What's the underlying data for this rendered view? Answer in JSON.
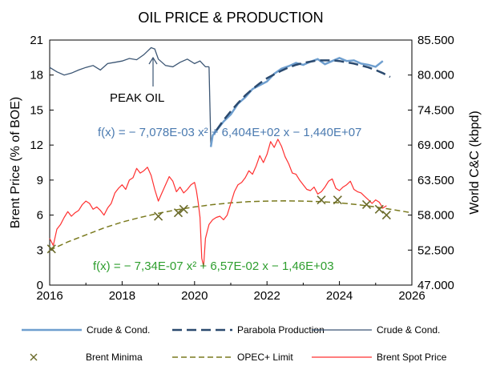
{
  "chart_data": {
    "type": "line",
    "title": "OIL PRICE & PRODUCTION",
    "ylabel_left": "Brent Price  (% of BOE)",
    "ylabel_right": "World C&C (kbpd)",
    "xlim": [
      2016,
      2026
    ],
    "ylim_left": [
      0,
      21
    ],
    "ylim_right": [
      47000,
      85500
    ],
    "x_ticks": [
      "2016",
      "2018",
      "2020",
      "2022",
      "2024",
      "2026"
    ],
    "y_ticks_left": [
      "0",
      "3",
      "6",
      "9",
      "12",
      "15",
      "18",
      "21"
    ],
    "y_ticks_right": [
      "47.000",
      "52.500",
      "58.000",
      "63.500",
      "69.000",
      "74.500",
      "80.000",
      "85.500"
    ],
    "grid": false,
    "legend_position": "bottom",
    "annotations": {
      "peak_oil": "PEAK OIL",
      "fit_production": "f(x) = − 7,078E-03 x² + 6,404E+02 x − 1,440E+07",
      "fit_opec": "f(x) = − 7,34E-07 x² + 6,57E-02 x − 1,46E+03"
    },
    "legend": [
      "Crude & Cond.",
      "Parabola Production",
      "Crude & Cond.",
      "Brent Minima",
      "OPEC+ Limit",
      "Brent Spot Price"
    ],
    "colors": {
      "crude_light": "#6f9fcf",
      "parabola": "#2b4a6f",
      "crude_dark": "#3b5573",
      "brent_minima": "#6b6b2a",
      "opec_limit": "#7a7a1e",
      "brent_spot": "#ff3030",
      "fit_production_text": "#4a7ab0",
      "fit_opec_text": "#2e9e2e"
    },
    "series": {
      "crude_dark": {
        "name": "Crude & Cond.",
        "axis": "right",
        "x": [
          2016.0,
          2016.2,
          2016.4,
          2016.6,
          2016.8,
          2017.0,
          2017.2,
          2017.4,
          2017.6,
          2017.8,
          2018.0,
          2018.2,
          2018.4,
          2018.6,
          2018.8,
          2018.9,
          2019.0,
          2019.2,
          2019.4,
          2019.6,
          2019.8,
          2020.0,
          2020.15,
          2020.3,
          2020.4
        ],
        "y": [
          81200,
          80500,
          80000,
          80300,
          80800,
          81200,
          81500,
          80800,
          81800,
          82000,
          82200,
          82600,
          82400,
          83200,
          84300,
          84100,
          82500,
          81500,
          81300,
          82000,
          82500,
          81800,
          82200,
          81300,
          81300
        ]
      },
      "crude_light": {
        "name": "Crude & Cond.",
        "axis": "right",
        "x": [
          2020.45,
          2020.5,
          2020.65,
          2020.8,
          2021.0,
          2021.2,
          2021.4,
          2021.6,
          2021.8,
          2022.0,
          2022.2,
          2022.4,
          2022.6,
          2022.8,
          2023.0,
          2023.2,
          2023.4,
          2023.6,
          2023.8,
          2024.0,
          2024.2,
          2024.4,
          2024.6,
          2024.8,
          2025.0,
          2025.2
        ],
        "y": [
          68700,
          70500,
          71600,
          72700,
          73800,
          75500,
          76500,
          77800,
          78400,
          79000,
          80200,
          81000,
          81400,
          81900,
          81600,
          82100,
          82500,
          81700,
          82200,
          82700,
          82200,
          82300,
          81800,
          81600,
          81300,
          82200
        ]
      },
      "parabola_production": {
        "name": "Parabola Production",
        "axis": "right",
        "x": [
          2020.6,
          2020.8,
          2021.0,
          2021.2,
          2021.4,
          2021.6,
          2021.8,
          2022.0,
          2022.2,
          2022.4,
          2022.6,
          2022.8,
          2023.0,
          2023.2,
          2023.4,
          2023.6,
          2023.8,
          2024.0,
          2024.2,
          2024.4,
          2024.6,
          2024.8,
          2025.0,
          2025.2,
          2025.4
        ],
        "y": [
          71300,
          72900,
          74300,
          75600,
          76800,
          77800,
          78700,
          79500,
          80100,
          80700,
          81200,
          81600,
          81900,
          82100,
          82300,
          82300,
          82300,
          82200,
          82000,
          81800,
          81500,
          81200,
          80800,
          80300,
          79700
        ]
      },
      "opec_limit": {
        "name": "OPEC+ Limit",
        "axis": "left",
        "x": [
          2016.0,
          2016.5,
          2017.0,
          2017.5,
          2018.0,
          2018.5,
          2019.0,
          2019.5,
          2020.0,
          2020.5,
          2021.0,
          2021.5,
          2022.0,
          2022.5,
          2023.0,
          2023.5,
          2024.0,
          2024.5,
          2025.0,
          2025.5,
          2026.0
        ],
        "y": [
          3.0,
          3.7,
          4.3,
          4.9,
          5.4,
          5.8,
          6.15,
          6.45,
          6.7,
          6.9,
          7.05,
          7.15,
          7.2,
          7.22,
          7.2,
          7.15,
          7.05,
          6.9,
          6.7,
          6.45,
          6.2
        ]
      },
      "brent_minima": {
        "name": "Brent Minima",
        "axis": "left",
        "x": [
          2016.05,
          2019.0,
          2019.55,
          2019.7,
          2023.5,
          2023.95,
          2024.75,
          2025.1,
          2025.3
        ],
        "y": [
          3.1,
          5.9,
          6.2,
          6.5,
          7.3,
          7.3,
          6.9,
          6.5,
          6.0
        ]
      },
      "brent_spot": {
        "name": "Brent Spot Price",
        "axis": "left",
        "x": [
          2016.0,
          2016.1,
          2016.2,
          2016.3,
          2016.4,
          2016.5,
          2016.6,
          2016.7,
          2016.8,
          2016.9,
          2017.0,
          2017.1,
          2017.2,
          2017.3,
          2017.4,
          2017.5,
          2017.6,
          2017.7,
          2017.8,
          2017.9,
          2018.0,
          2018.1,
          2018.2,
          2018.3,
          2018.4,
          2018.5,
          2018.6,
          2018.7,
          2018.8,
          2018.9,
          2019.0,
          2019.1,
          2019.2,
          2019.3,
          2019.4,
          2019.5,
          2019.6,
          2019.7,
          2019.8,
          2019.9,
          2020.0,
          2020.05,
          2020.1,
          2020.15,
          2020.2,
          2020.25,
          2020.3,
          2020.35,
          2020.4,
          2020.5,
          2020.6,
          2020.7,
          2020.8,
          2020.9,
          2021.0,
          2021.1,
          2021.2,
          2021.3,
          2021.4,
          2021.5,
          2021.6,
          2021.7,
          2021.8,
          2021.9,
          2022.0,
          2022.1,
          2022.2,
          2022.3,
          2022.4,
          2022.5,
          2022.6,
          2022.7,
          2022.8,
          2022.9,
          2023.0,
          2023.1,
          2023.2,
          2023.3,
          2023.4,
          2023.5,
          2023.6,
          2023.7,
          2023.8,
          2023.9,
          2024.0,
          2024.1,
          2024.2,
          2024.3,
          2024.4,
          2024.5,
          2024.6,
          2024.7,
          2024.8,
          2024.9,
          2025.0,
          2025.1,
          2025.2,
          2025.3
        ],
        "y": [
          4.0,
          3.4,
          4.8,
          5.2,
          5.8,
          6.3,
          5.9,
          6.2,
          6.4,
          6.9,
          7.2,
          7.0,
          6.5,
          6.7,
          6.4,
          6.0,
          6.6,
          7.0,
          7.9,
          8.3,
          8.6,
          8.2,
          9.0,
          9.2,
          10.0,
          9.6,
          9.8,
          10.1,
          9.4,
          8.2,
          7.2,
          7.9,
          8.6,
          9.3,
          8.9,
          8.0,
          8.4,
          7.9,
          8.2,
          8.6,
          8.8,
          8.1,
          7.1,
          5.8,
          2.3,
          1.6,
          4.0,
          4.6,
          5.2,
          5.6,
          5.8,
          5.9,
          5.6,
          6.0,
          7.0,
          8.0,
          8.6,
          8.8,
          9.2,
          9.8,
          9.5,
          10.2,
          11.1,
          10.5,
          11.2,
          12.3,
          11.8,
          12.5,
          11.9,
          11.0,
          10.4,
          9.6,
          9.5,
          9.0,
          8.6,
          8.2,
          8.1,
          8.4,
          7.8,
          8.0,
          8.4,
          8.9,
          9.1,
          8.3,
          8.1,
          8.4,
          8.6,
          8.9,
          8.2,
          8.0,
          7.9,
          7.6,
          7.3,
          7.0,
          7.3,
          7.1,
          6.6,
          6.8
        ]
      }
    }
  }
}
